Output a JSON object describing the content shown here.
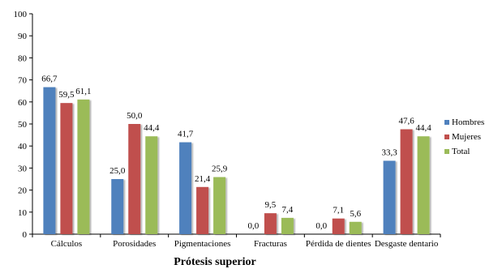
{
  "chart_data": {
    "type": "bar",
    "title": "",
    "xlabel": "Prótesis superior",
    "ylabel": "",
    "ylim": [
      0,
      100
    ],
    "yticks": [
      0,
      10,
      20,
      30,
      40,
      50,
      60,
      70,
      80,
      90,
      100
    ],
    "grid": false,
    "legend_position": "right",
    "categories": [
      "Cálculos",
      "Porosidades",
      "Pigmentaciones",
      "Fracturas",
      "Pérdida de dientes",
      "Desgaste dentario"
    ],
    "series": [
      {
        "name": "Hombres",
        "color": "#4F81BD",
        "values": [
          66.7,
          25.0,
          41.7,
          0.0,
          0.0,
          33.3
        ],
        "labels": [
          "66,7",
          "25,0",
          "41,7",
          "0,0",
          "0,0",
          "33,3"
        ]
      },
      {
        "name": "Mujeres",
        "color": "#C0504D",
        "values": [
          59.5,
          50.0,
          21.4,
          9.5,
          7.1,
          47.6
        ],
        "labels": [
          "59,5",
          "50,0",
          "21,4",
          "9,5",
          "7,1",
          "47,6"
        ]
      },
      {
        "name": "Total",
        "color": "#9BBB59",
        "values": [
          61.1,
          44.4,
          25.9,
          7.4,
          5.6,
          44.4
        ],
        "labels": [
          "61,1",
          "44,4",
          "25,9",
          "7,4",
          "5,6",
          "44,4"
        ]
      }
    ]
  }
}
